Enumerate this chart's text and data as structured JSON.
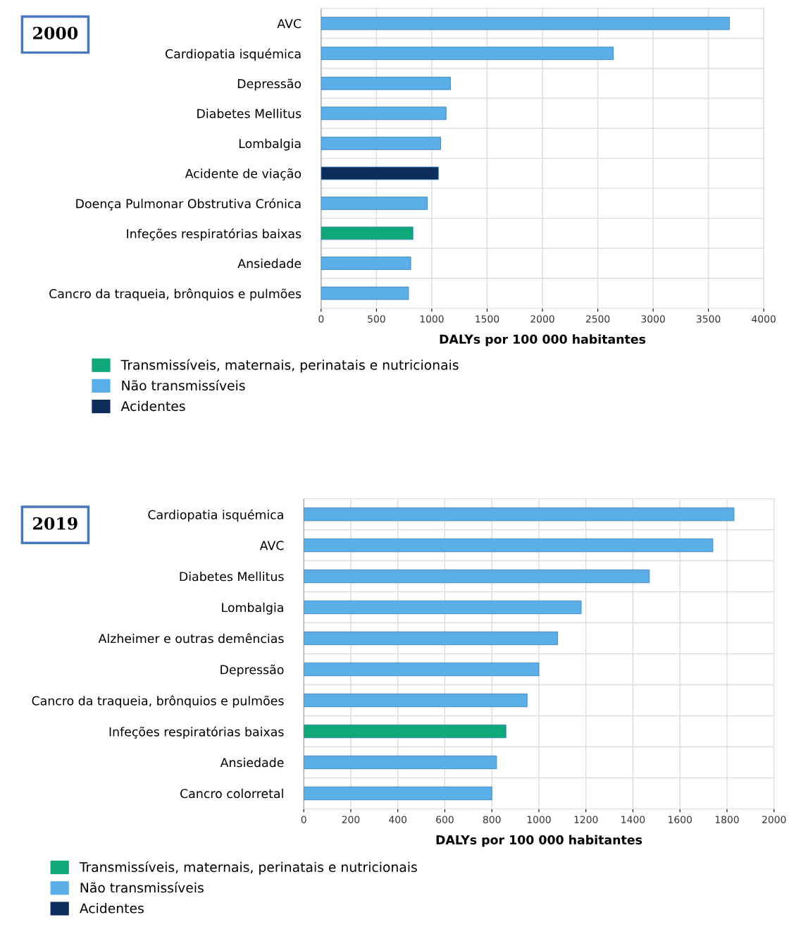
{
  "chart_data": [
    {
      "type": "bar",
      "title": "2000",
      "orientation": "horizontal",
      "categories": [
        "AVC",
        "Cardiopatia isquémica",
        "Depressão",
        "Diabetes Mellitus",
        "Lombalgia",
        "Acidente de viação",
        "Doença Pulmonar Obstrutiva Crónica",
        "Infeções respiratórias baixas",
        "Ansiedade",
        "Cancro da traqueia, brônquios e pulmões"
      ],
      "series": [
        {
          "name": "Transmissíveis, maternais, perinatais e nutricionais",
          "color": "#0fa878",
          "values": [
            null,
            null,
            null,
            null,
            null,
            null,
            null,
            830,
            null,
            null
          ]
        },
        {
          "name": "Não transmissíveis",
          "color": "#5aafe8",
          "values": [
            3690,
            2640,
            1170,
            1130,
            1080,
            null,
            960,
            null,
            810,
            790
          ]
        },
        {
          "name": "Acidentes",
          "color": "#0d2e5c",
          "values": [
            null,
            null,
            null,
            null,
            null,
            1060,
            null,
            null,
            null,
            null
          ]
        }
      ],
      "xlabel": "DALYs por 100 000 habitantes",
      "xlim": [
        0,
        4000
      ],
      "xticks": [
        0,
        500,
        1000,
        1500,
        2000,
        2500,
        3000,
        3500,
        4000
      ],
      "grid": "x",
      "legend": "bottom"
    },
    {
      "type": "bar",
      "title": "2019",
      "orientation": "horizontal",
      "categories": [
        "Cardiopatia isquémica",
        "AVC",
        "Diabetes Mellitus",
        "Lombalgia",
        "Alzheimer e outras demências",
        "Depressão",
        "Cancro da traqueia, brônquios e pulmões",
        "Infeções respiratórias baixas",
        "Ansiedade",
        "Cancro colorretal"
      ],
      "series": [
        {
          "name": "Transmissíveis, maternais, perinatais e nutricionais",
          "color": "#0fa878",
          "values": [
            null,
            null,
            null,
            null,
            null,
            null,
            null,
            860,
            null,
            null
          ]
        },
        {
          "name": "Não transmissíveis",
          "color": "#5aafe8",
          "values": [
            1830,
            1740,
            1470,
            1180,
            1080,
            1000,
            950,
            null,
            820,
            800
          ]
        },
        {
          "name": "Acidentes",
          "color": "#0d2e5c",
          "values": [
            null,
            null,
            null,
            null,
            null,
            null,
            null,
            null,
            null,
            null
          ]
        }
      ],
      "xlabel": "DALYs por 100 000 habitantes",
      "xlim": [
        0,
        2000
      ],
      "xticks": [
        0,
        200,
        400,
        600,
        800,
        1000,
        1200,
        1400,
        1600,
        1800,
        2000
      ],
      "grid": "x",
      "legend": "bottom"
    }
  ]
}
